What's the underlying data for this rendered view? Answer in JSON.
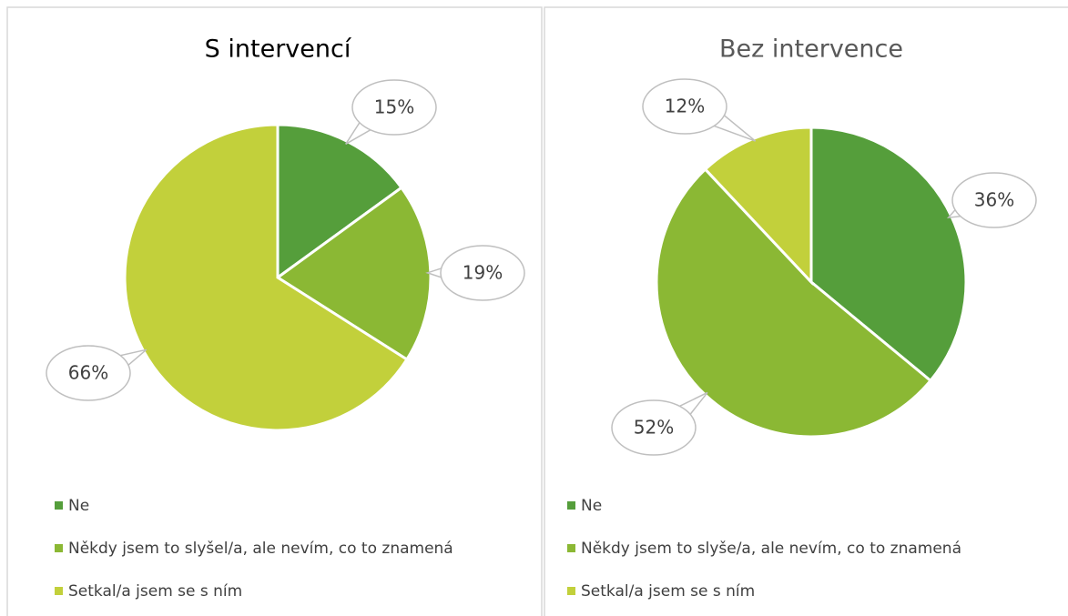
{
  "chart_data": [
    {
      "type": "pie",
      "title": "S intervencí",
      "categories": [
        "Ne",
        "Někdy jsem to slyšel/a, ale nevím, co to znamená",
        "Setkal/a jsem se s ním"
      ],
      "values": [
        15,
        19,
        66
      ],
      "value_labels": [
        "15%",
        "19%",
        "66%"
      ],
      "colors": [
        "#559e3b",
        "#8bb834",
        "#c2d03b"
      ]
    },
    {
      "type": "pie",
      "title": "Bez intervence",
      "categories": [
        "Ne",
        "Někdy jsem to slyše/a, ale nevím, co to znamená",
        "Setkal/a jsem se s ním"
      ],
      "values": [
        36,
        52,
        12
      ],
      "value_labels": [
        "36%",
        "52%",
        "12%"
      ],
      "colors": [
        "#559e3b",
        "#8bb834",
        "#c2d03b"
      ]
    }
  ]
}
